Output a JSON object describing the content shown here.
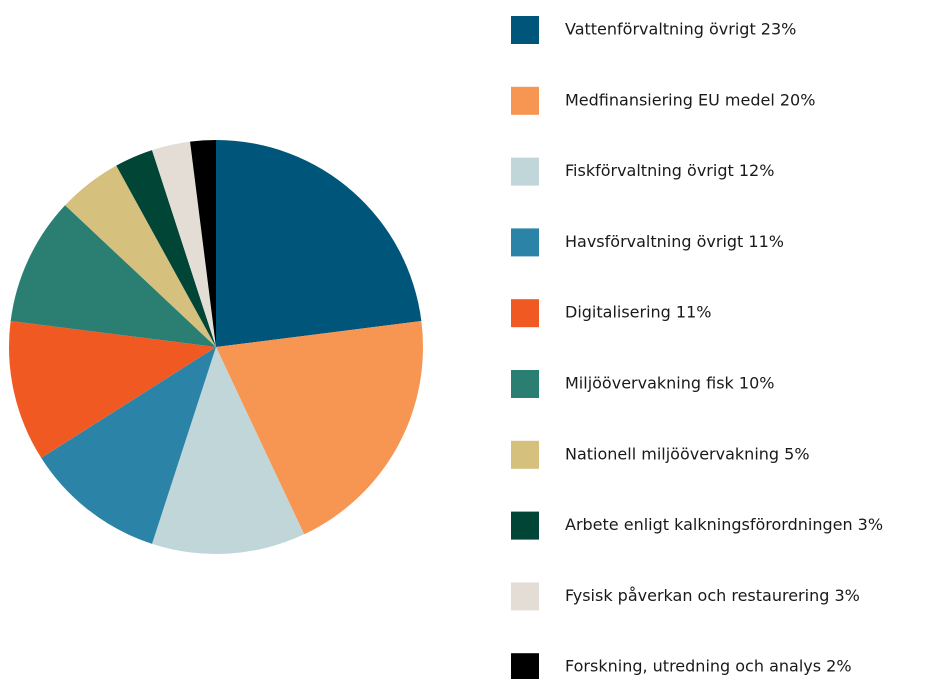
{
  "chart_data": {
    "type": "pie",
    "categories": [
      "Vattenförvaltning övrigt 23%",
      "Medfinansiering EU medel 20%",
      "Fiskförvaltning övrigt 12%",
      "Havsförvaltning övrigt 11%",
      "Digitalisering 11%",
      "Miljöövervakning fisk 10%",
      "Nationell miljöövervakning 5%",
      "Arbete enligt kalkningsförordningen 3%",
      "Fysisk påverkan och restaurering 3%",
      "Forskning, utredning och analys 2%"
    ],
    "values": [
      23,
      20,
      12,
      11,
      11,
      10,
      5,
      3,
      3,
      2
    ],
    "colors": [
      "#00557a",
      "#f79552",
      "#c1d6d8",
      "#2b84a8",
      "#f05a22",
      "#2b7f72",
      "#d6c07d",
      "#004536",
      "#e3ddd5",
      "#000000"
    ],
    "legend": "right"
  }
}
